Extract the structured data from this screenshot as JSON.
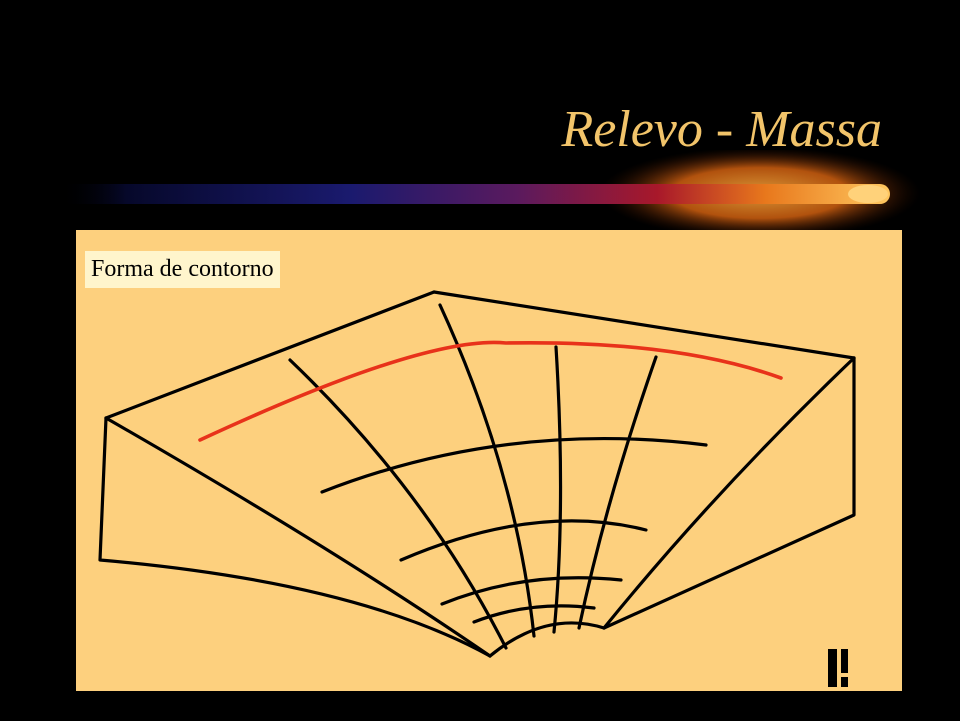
{
  "slide": {
    "title": "Relevo - Massa",
    "title_color": "#f2c46a",
    "background_color": "#000000"
  },
  "figure": {
    "caption": "Forma de contorno",
    "panel_color": "#fdd07e",
    "caption_background": "#fff5cc",
    "contour_highlight_color": "#e8321a"
  }
}
